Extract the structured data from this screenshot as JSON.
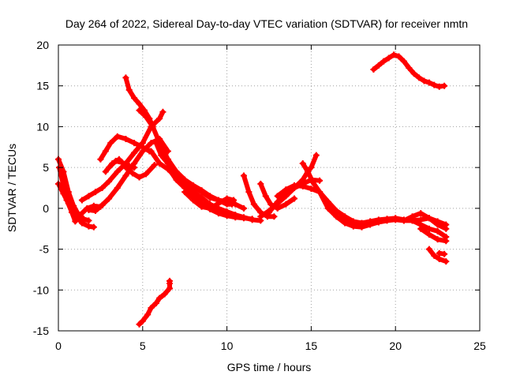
{
  "chart_data": {
    "type": "scatter",
    "title": "Day 264 of 2022, Sidereal Day-to-day VTEC variation (SDTVAR) for receiver nmtn",
    "xlabel": "GPS time / hours",
    "ylabel": "SDTVAR / TECUs",
    "xlim": [
      0,
      25
    ],
    "ylim": [
      -15,
      20
    ],
    "grid": true,
    "xticks": [
      0,
      5,
      10,
      15,
      20,
      25
    ],
    "yticks": [
      -15,
      -10,
      -5,
      0,
      5,
      10,
      15,
      20
    ],
    "xtick_labels": [
      "0",
      "5",
      "10",
      "15",
      "20",
      "25"
    ],
    "ytick_labels": [
      "-15",
      "-10",
      "-5",
      "0",
      "5",
      "10",
      "15",
      "20"
    ],
    "marker": "+",
    "color": "#ff0000",
    "series": [
      {
        "name": "s1",
        "points": [
          [
            0,
            6
          ],
          [
            0.3,
            4.5
          ],
          [
            0.6,
            2
          ],
          [
            0.9,
            0.3
          ],
          [
            1.2,
            -0.8
          ],
          [
            1.5,
            -1.3
          ],
          [
            1.8,
            -1.5
          ]
        ]
      },
      {
        "name": "s2",
        "points": [
          [
            0.05,
            5
          ],
          [
            0.3,
            2.8
          ],
          [
            0.5,
            1
          ],
          [
            0.8,
            0
          ],
          [
            1.1,
            -1
          ],
          [
            1.4,
            -1.8
          ],
          [
            1.8,
            -2.2
          ],
          [
            2.1,
            -2.3
          ]
        ]
      },
      {
        "name": "s3",
        "points": [
          [
            0,
            3
          ],
          [
            0.3,
            1.8
          ],
          [
            0.6,
            0.6
          ],
          [
            0.9,
            -0.6
          ],
          [
            1.2,
            -1.2
          ]
        ]
      },
      {
        "name": "s4",
        "points": [
          [
            0.5,
            1
          ],
          [
            0.8,
            -0.5
          ],
          [
            1.0,
            -1.6
          ],
          [
            1.3,
            -0.8
          ],
          [
            1.7,
            0
          ],
          [
            2.1,
            0.3
          ],
          [
            2.5,
            0.2
          ]
        ]
      },
      {
        "name": "s5",
        "points": [
          [
            1.8,
            -0.2
          ],
          [
            2.2,
            -0.3
          ],
          [
            2.6,
            0.4
          ],
          [
            3,
            1.2
          ],
          [
            3.5,
            2.5
          ],
          [
            4,
            4
          ],
          [
            4.5,
            5.5
          ],
          [
            5,
            7
          ],
          [
            5.5,
            8
          ],
          [
            6,
            8.5
          ],
          [
            6.5,
            7
          ]
        ]
      },
      {
        "name": "s6",
        "points": [
          [
            1.4,
            1
          ],
          [
            1.8,
            1.5
          ],
          [
            2.2,
            2
          ],
          [
            2.6,
            2.5
          ],
          [
            3,
            3.3
          ],
          [
            3.5,
            4.5
          ],
          [
            4,
            5.5
          ],
          [
            4.5,
            6.8
          ],
          [
            5,
            8
          ],
          [
            5.5,
            10
          ],
          [
            6,
            11
          ],
          [
            6.2,
            11.8
          ]
        ]
      },
      {
        "name": "s7",
        "points": [
          [
            2.5,
            6
          ],
          [
            2.8,
            7
          ],
          [
            3.1,
            8
          ],
          [
            3.5,
            8.8
          ],
          [
            4,
            8.5
          ],
          [
            4.5,
            8
          ],
          [
            5,
            7.5
          ],
          [
            5.4,
            7
          ]
        ]
      },
      {
        "name": "s8",
        "points": [
          [
            4,
            5
          ],
          [
            4.4,
            4.3
          ],
          [
            4.8,
            3.8
          ],
          [
            5.2,
            4.2
          ],
          [
            5.7,
            5.3
          ]
        ]
      },
      {
        "name": "s9",
        "points": [
          [
            3,
            5
          ],
          [
            3.4,
            5.8
          ],
          [
            3.8,
            5.6
          ],
          [
            4.2,
            5.2
          ],
          [
            4.5,
            5
          ]
        ]
      },
      {
        "name": "s10",
        "points": [
          [
            2.8,
            4.5
          ],
          [
            3.2,
            5.5
          ],
          [
            3.6,
            6
          ]
        ]
      },
      {
        "name": "s11",
        "points": [
          [
            4,
            16
          ],
          [
            4.2,
            14.5
          ],
          [
            4.5,
            13.5
          ],
          [
            4.8,
            12.8
          ],
          [
            5.1,
            12
          ],
          [
            5.4,
            11
          ],
          [
            5.6,
            10
          ]
        ]
      },
      {
        "name": "s12",
        "points": [
          [
            4.8,
            12
          ],
          [
            5.2,
            11.2
          ],
          [
            5.6,
            10
          ],
          [
            6,
            8
          ],
          [
            6.5,
            6
          ],
          [
            7,
            4.5
          ],
          [
            7.5,
            3.2
          ],
          [
            8,
            2.6
          ],
          [
            8.5,
            2
          ],
          [
            9,
            1.3
          ],
          [
            9.5,
            1
          ],
          [
            10,
            0.5
          ],
          [
            10.3,
            0.5
          ]
        ]
      },
      {
        "name": "s13",
        "points": [
          [
            5.8,
            8
          ],
          [
            6.1,
            6.5
          ],
          [
            6.5,
            5.5
          ],
          [
            7,
            4.5
          ],
          [
            7.5,
            3.5
          ],
          [
            8,
            2.8
          ],
          [
            8.5,
            2.2
          ],
          [
            9,
            1.5
          ],
          [
            9.5,
            1
          ],
          [
            10,
            0.8
          ],
          [
            10.5,
            0.5
          ],
          [
            11,
            0
          ]
        ]
      },
      {
        "name": "s14",
        "points": [
          [
            5.5,
            7
          ],
          [
            6,
            5.5
          ],
          [
            6.5,
            4.8
          ],
          [
            7,
            3.8
          ],
          [
            7.5,
            2.8
          ],
          [
            8,
            2
          ],
          [
            8.5,
            1.3
          ],
          [
            9,
            0.5
          ],
          [
            9.5,
            0
          ],
          [
            10,
            -0.4
          ],
          [
            10.5,
            -0.8
          ],
          [
            11,
            -1.1
          ],
          [
            11.5,
            -1.4
          ],
          [
            12,
            -1.5
          ]
        ]
      },
      {
        "name": "s15",
        "points": [
          [
            6.5,
            5
          ],
          [
            7,
            3.5
          ],
          [
            7.5,
            2.5
          ],
          [
            8,
            1.6
          ],
          [
            8.5,
            0.6
          ],
          [
            9,
            -0.1
          ],
          [
            9.5,
            -0.6
          ],
          [
            10,
            -0.9
          ],
          [
            10.5,
            -1.1
          ],
          [
            11,
            -1.2
          ],
          [
            11.5,
            -1.3
          ]
        ]
      },
      {
        "name": "s16",
        "points": [
          [
            7.5,
            2
          ],
          [
            8,
            1
          ],
          [
            8.5,
            0.2
          ],
          [
            9,
            0
          ],
          [
            9.5,
            0.6
          ],
          [
            10,
            1.2
          ],
          [
            10.4,
            1
          ]
        ]
      },
      {
        "name": "s17",
        "points": [
          [
            11,
            4
          ],
          [
            11.3,
            2
          ],
          [
            11.6,
            0.5
          ],
          [
            12,
            -0.5
          ],
          [
            12.4,
            -1
          ],
          [
            12.8,
            -1
          ]
        ]
      },
      {
        "name": "s18",
        "points": [
          [
            12,
            3
          ],
          [
            12.3,
            1.5
          ],
          [
            12.6,
            0.5
          ],
          [
            13,
            0
          ],
          [
            13.5,
            0.5
          ],
          [
            14,
            1.2
          ]
        ]
      },
      {
        "name": "s19",
        "points": [
          [
            12,
            -1
          ],
          [
            12.5,
            -0.3
          ],
          [
            13,
            0.6
          ],
          [
            13.5,
            1.5
          ],
          [
            14,
            2.5
          ],
          [
            14.5,
            3.5
          ],
          [
            14.8,
            4.5
          ],
          [
            15,
            5
          ],
          [
            15.3,
            6.5
          ]
        ]
      },
      {
        "name": "s20",
        "points": [
          [
            12.5,
            -0.5
          ],
          [
            13,
            0.8
          ],
          [
            13.5,
            1.8
          ],
          [
            14,
            2.5
          ],
          [
            14.5,
            3
          ],
          [
            15,
            3.5
          ],
          [
            15.5,
            3.4
          ]
        ]
      },
      {
        "name": "s21",
        "points": [
          [
            13,
            1.5
          ],
          [
            13.5,
            2.3
          ],
          [
            14,
            2.8
          ],
          [
            14.5,
            2.7
          ],
          [
            15,
            2.4
          ],
          [
            15.5,
            2
          ],
          [
            16,
            0.5
          ],
          [
            16.5,
            -1
          ],
          [
            17,
            -1.8
          ],
          [
            17.5,
            -2.2
          ],
          [
            18,
            -2.3
          ],
          [
            18.5,
            -2
          ],
          [
            19,
            -1.7
          ],
          [
            19.5,
            -1.5
          ],
          [
            20,
            -1.4
          ],
          [
            20.5,
            -1.5
          ],
          [
            21,
            -1.5
          ],
          [
            21.5,
            -1.4
          ],
          [
            22,
            -1.2
          ],
          [
            22.5,
            -1.6
          ],
          [
            23,
            -2
          ]
        ]
      },
      {
        "name": "s22",
        "points": [
          [
            14.5,
            5.5
          ],
          [
            14.8,
            4.5
          ],
          [
            15.1,
            3.2
          ],
          [
            15.5,
            2
          ],
          [
            16,
            0
          ],
          [
            16.5,
            -1
          ],
          [
            17,
            -1.6
          ],
          [
            17.5,
            -2
          ],
          [
            18,
            -2
          ]
        ]
      },
      {
        "name": "s23",
        "points": [
          [
            15.5,
            2
          ],
          [
            16,
            0.8
          ],
          [
            16.5,
            -0.3
          ],
          [
            17,
            -1
          ],
          [
            17.5,
            -1.6
          ],
          [
            18,
            -1.8
          ],
          [
            18.5,
            -1.6
          ],
          [
            19,
            -1.4
          ],
          [
            19.5,
            -1.3
          ],
          [
            20,
            -1.2
          ],
          [
            20.5,
            -1.4
          ],
          [
            21,
            -1.5
          ]
        ]
      },
      {
        "name": "s24",
        "points": [
          [
            20.5,
            -1.5
          ],
          [
            21,
            -1
          ],
          [
            21.5,
            -0.6
          ],
          [
            22,
            -1.2
          ],
          [
            22.5,
            -2
          ],
          [
            23,
            -2.5
          ]
        ]
      },
      {
        "name": "s25",
        "points": [
          [
            21,
            -1.5
          ],
          [
            21.5,
            -2
          ],
          [
            22,
            -2.5
          ],
          [
            22.5,
            -2.8
          ],
          [
            23,
            -3.5
          ]
        ]
      },
      {
        "name": "s26",
        "points": [
          [
            21.5,
            -2.5
          ],
          [
            22,
            -3.2
          ],
          [
            22.5,
            -3.8
          ],
          [
            23,
            -4
          ]
        ]
      },
      {
        "name": "s27",
        "points": [
          [
            22,
            -5
          ],
          [
            22.3,
            -5.8
          ],
          [
            22.6,
            -6.2
          ],
          [
            23,
            -6.5
          ]
        ]
      },
      {
        "name": "s28",
        "points": [
          [
            22.6,
            -5.5
          ],
          [
            22.9,
            -5.6
          ]
        ]
      },
      {
        "name": "s29",
        "points": [
          [
            18.7,
            17
          ],
          [
            19,
            17.5
          ],
          [
            19.3,
            18
          ],
          [
            19.6,
            18.4
          ],
          [
            19.9,
            18.8
          ],
          [
            20.2,
            18.6
          ],
          [
            20.5,
            18
          ],
          [
            20.8,
            17.2
          ],
          [
            21.1,
            16.5
          ],
          [
            21.4,
            16
          ],
          [
            21.7,
            15.6
          ],
          [
            22,
            15.4
          ],
          [
            22.3,
            15.1
          ],
          [
            22.6,
            14.9
          ],
          [
            22.9,
            15
          ]
        ]
      },
      {
        "name": "s30",
        "points": [
          [
            4.8,
            -14.2
          ],
          [
            5.0,
            -13.8
          ],
          [
            5.3,
            -13
          ],
          [
            5.5,
            -12.2
          ],
          [
            5.8,
            -11.6
          ],
          [
            6.0,
            -11
          ],
          [
            6.3,
            -10.5
          ],
          [
            6.6,
            -9.8
          ],
          [
            6.6,
            -9.2
          ],
          [
            6.6,
            -8.9
          ]
        ]
      }
    ]
  }
}
